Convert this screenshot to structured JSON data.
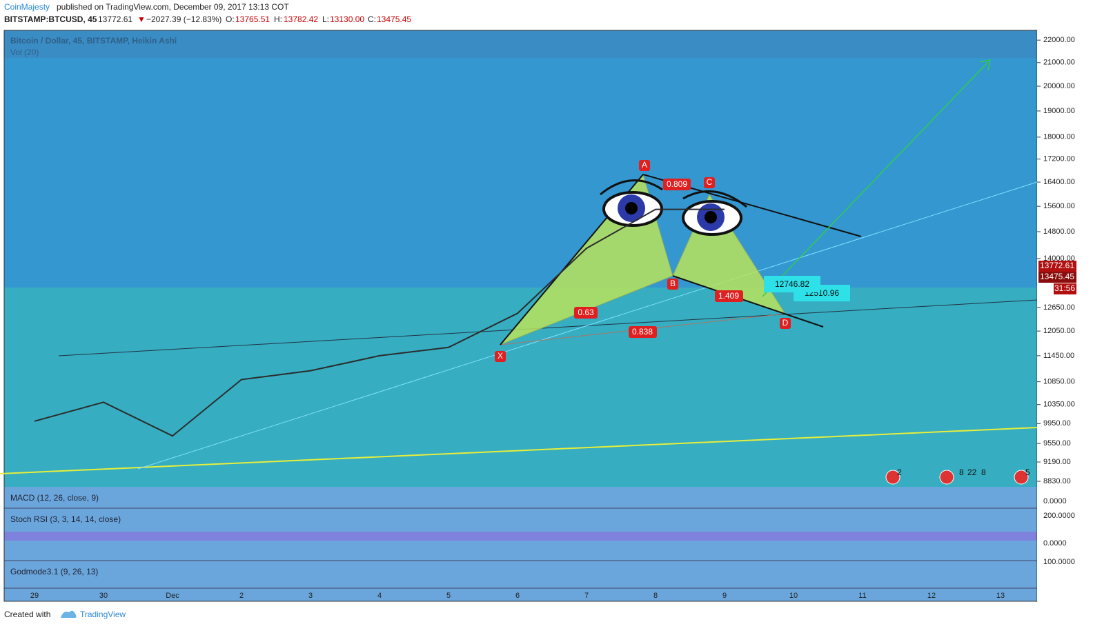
{
  "header": {
    "author": "CoinMajesty",
    "published": "published on TradingView.com, December 09, 2017 13:13 COT",
    "symbol": "BITSTAMP:BTCUSD, 45",
    "last": "13772.61",
    "change": "−2027.39 (−12.83%)",
    "open_label": "O:",
    "open": "13765.51",
    "high_label": "H:",
    "high": "13782.42",
    "low_label": "L:",
    "low": "13130.00",
    "close_label": "C:",
    "close": "13475.45"
  },
  "chart_data": {
    "type": "line",
    "title": "Bitcoin / Dollar, 45, BITSTAMP, Heikin Ashi",
    "subtitle": "Vol (20)",
    "categories": [
      "29",
      "30",
      "Dec",
      "2",
      "3",
      "4",
      "5",
      "6",
      "7",
      "8",
      "9",
      "10",
      "11",
      "12",
      "13"
    ],
    "values": [
      10000,
      10400,
      9700,
      10900,
      11100,
      11450,
      11650,
      12500,
      14300,
      15500,
      15500,
      null,
      null,
      null,
      null
    ],
    "color": "#2b2b2b",
    "log_scale": true,
    "ylim": [
      8730,
      22450
    ],
    "yticks": [
      {
        "value": 22000,
        "label": "22000.00"
      },
      {
        "value": 21000,
        "label": "21000.00"
      },
      {
        "value": 20000,
        "label": "20000.00"
      },
      {
        "value": 19000,
        "label": "19000.00"
      },
      {
        "value": 18000,
        "label": "18000.00"
      },
      {
        "value": 17200,
        "label": "17200.00"
      },
      {
        "value": 16400,
        "label": "16400.00"
      },
      {
        "value": 15600,
        "label": "15600.00"
      },
      {
        "value": 14800,
        "label": "14800.00"
      },
      {
        "value": 14000,
        "label": "14000.00"
      },
      {
        "value": 12650,
        "label": "12650.00"
      },
      {
        "value": 12050,
        "label": "12050.00"
      },
      {
        "value": 11450,
        "label": "11450.00"
      },
      {
        "value": 10850,
        "label": "10850.00"
      },
      {
        "value": 10350,
        "label": "10350.00"
      },
      {
        "value": 9950,
        "label": "9950.00"
      },
      {
        "value": 9550,
        "label": "9550.00"
      },
      {
        "value": 9190,
        "label": "9190.00"
      },
      {
        "value": 8830,
        "label": "8830.00"
      }
    ]
  },
  "annotations": [
    "13772.61",
    "13475.45",
    "31:56"
  ],
  "pattern": {
    "points": [
      "X",
      "A",
      "B",
      "C",
      "D"
    ],
    "ratios": [
      "0.809",
      "0.63",
      "1.409",
      "0.838"
    ],
    "targets": [
      "12746.82",
      "12510.96"
    ]
  },
  "indicators": [
    {
      "title": "MACD (12, 26, close, 9)",
      "ticks": [
        "0.0000"
      ]
    },
    {
      "title": "Stoch RSI (3, 3, 14, 14, close)",
      "ticks": [
        "200.0000",
        "0.0000"
      ]
    },
    {
      "title": "Godmode3.1 (9, 26, 13)",
      "ticks": [
        "100.0000"
      ]
    }
  ],
  "events": [
    "2",
    "8",
    "22",
    "8",
    "5"
  ],
  "footer": {
    "created": "Created with",
    "brand": "TradingView"
  }
}
